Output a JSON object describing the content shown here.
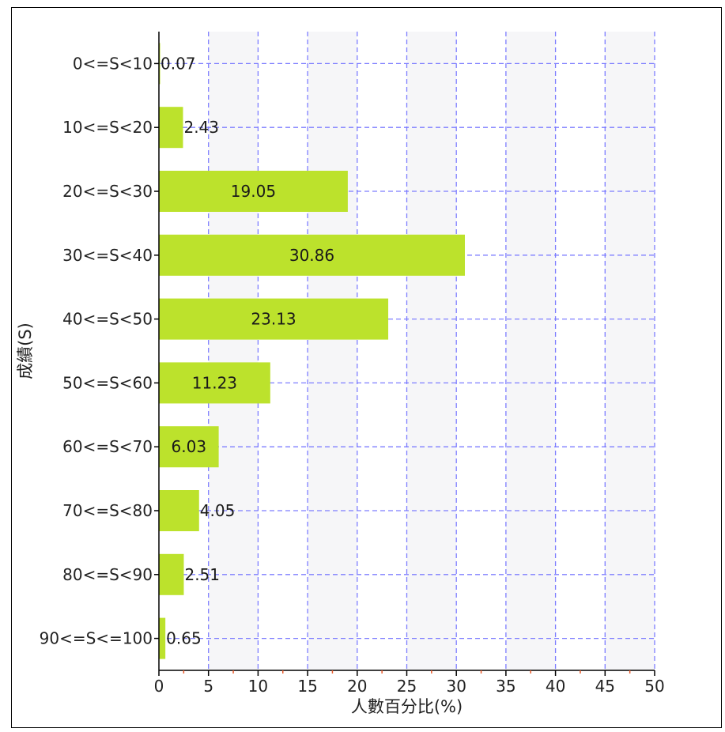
{
  "chart_data": {
    "type": "bar",
    "orientation": "horizontal",
    "categories": [
      "0<=S<10",
      "10<=S<20",
      "20<=S<30",
      "30<=S<40",
      "40<=S<50",
      "50<=S<60",
      "60<=S<70",
      "70<=S<80",
      "80<=S<90",
      "90<=S<=100"
    ],
    "values": [
      0.07,
      2.43,
      19.05,
      30.86,
      23.13,
      11.23,
      6.03,
      4.05,
      2.51,
      0.65
    ],
    "value_labels": [
      "0.07",
      "2.43",
      "19.05",
      "30.86",
      "23.13",
      "11.23",
      "6.03",
      "4.05",
      "2.51",
      "0.65"
    ],
    "xlabel": "人數百分比(%)",
    "ylabel": "成績(S)",
    "xlim": [
      0,
      50
    ],
    "x_ticks": [
      0,
      5,
      10,
      15,
      20,
      25,
      30,
      35,
      40,
      45,
      50
    ],
    "grid": true,
    "bar_color": "#bce22c",
    "grid_color": "#7d7dff",
    "band_color": "#f6f6f8",
    "minor_tick_color": "#e85a2a"
  }
}
